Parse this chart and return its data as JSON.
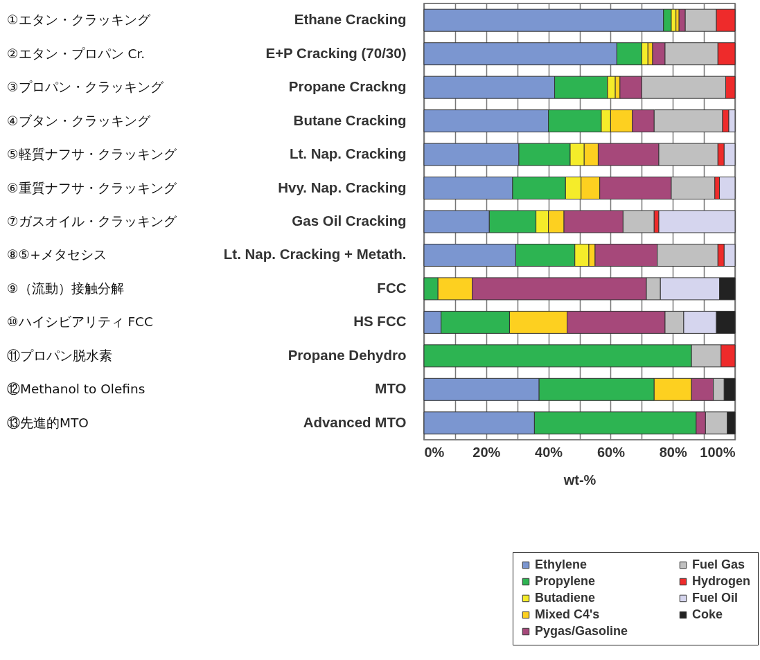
{
  "chart_data": {
    "type": "bar",
    "orientation": "horizontal",
    "stacked": true,
    "categories": [
      "Ethane Cracking",
      "E+P Cracking (70/30)",
      "Propane Crackng",
      "Butane Cracking",
      "Lt. Nap. Cracking",
      "Hvy. Nap. Cracking",
      "Gas Oil Cracking",
      "Lt. Nap. Cracking + Metath.",
      "FCC",
      "HS FCC",
      "Propane Dehydro",
      "MTO",
      "Advanced MTO"
    ],
    "series": [
      {
        "name": "Ethylene",
        "color": "#7b96d0",
        "values": [
          77,
          62,
          42,
          40,
          30.5,
          28.5,
          21,
          29.5,
          null,
          5.5,
          null,
          37,
          35.5
        ]
      },
      {
        "name": "Propylene",
        "color": "#2db452",
        "values": [
          2.5,
          8,
          17,
          17,
          16.5,
          17,
          15,
          19,
          4.5,
          22,
          86,
          37,
          52
        ]
      },
      {
        "name": "Butadiene",
        "color": "#f5ec2a",
        "values": [
          1.5,
          2,
          2.5,
          3,
          4.5,
          5,
          4,
          4.5,
          null,
          null,
          null,
          null,
          null
        ]
      },
      {
        "name": "Mixed C4's",
        "color": "#fdd020",
        "values": [
          1,
          1.5,
          1.5,
          7,
          4.5,
          6,
          5,
          2,
          11,
          18.5,
          null,
          12,
          null
        ]
      },
      {
        "name": "Pygas/Gasoline",
        "color": "#a6487a",
        "values": [
          2,
          4,
          7,
          7,
          19.5,
          23,
          19,
          20,
          56,
          31.5,
          null,
          7,
          3
        ]
      },
      {
        "name": "Fuel Gas",
        "color": "#c0c0c0",
        "values": [
          10,
          17,
          27,
          22,
          19,
          14,
          10,
          19.5,
          4.5,
          6,
          9.5,
          3.5,
          7
        ]
      },
      {
        "name": "Hydrogen",
        "color": "#ee2b2b",
        "values": [
          6,
          5.5,
          3,
          2,
          2,
          1.5,
          1.5,
          2,
          null,
          null,
          4.5,
          null,
          null
        ]
      },
      {
        "name": "Fuel Oil",
        "color": "#d5d5ee",
        "values": [
          null,
          null,
          null,
          2,
          3.5,
          5,
          24.5,
          3.5,
          19,
          10.5,
          null,
          null,
          null
        ]
      },
      {
        "name": "Coke",
        "color": "#222222",
        "values": [
          null,
          null,
          null,
          null,
          null,
          null,
          null,
          null,
          5,
          6,
          null,
          3.5,
          2.5
        ]
      }
    ],
    "xlabel": "wt-%",
    "xlim": [
      0,
      100
    ],
    "xticks": [
      {
        "value": 0,
        "label": "0%"
      },
      {
        "value": 10,
        "label": null
      },
      {
        "value": 20,
        "label": "20%"
      },
      {
        "value": 30,
        "label": null
      },
      {
        "value": 40,
        "label": "40%"
      },
      {
        "value": 50,
        "label": null
      },
      {
        "value": 60,
        "label": "60%"
      },
      {
        "value": 70,
        "label": null
      },
      {
        "value": 80,
        "label": "80%"
      },
      {
        "value": 90,
        "label": null
      },
      {
        "value": 100,
        "label": "100%"
      }
    ],
    "grid": "x",
    "legend": "bottom right",
    "annotations": [
      "①エタン・クラッキング",
      "②エタン・プロパン Cr.",
      "③プロパン・クラッキング",
      "④ブタン・クラッキング",
      "⑤軽質ナフサ・クラッキング",
      "⑥重質ナフサ・クラッキング",
      "⑦ガスオイル・クラッキング",
      "⑧⑤+メタセシス",
      "⑨（流動）接触分解",
      "⑩ハイシビアリティ FCC",
      "⑪プロパン脱水素",
      "⑫Methanol to Olefins",
      "⑬先進的MTO"
    ]
  }
}
